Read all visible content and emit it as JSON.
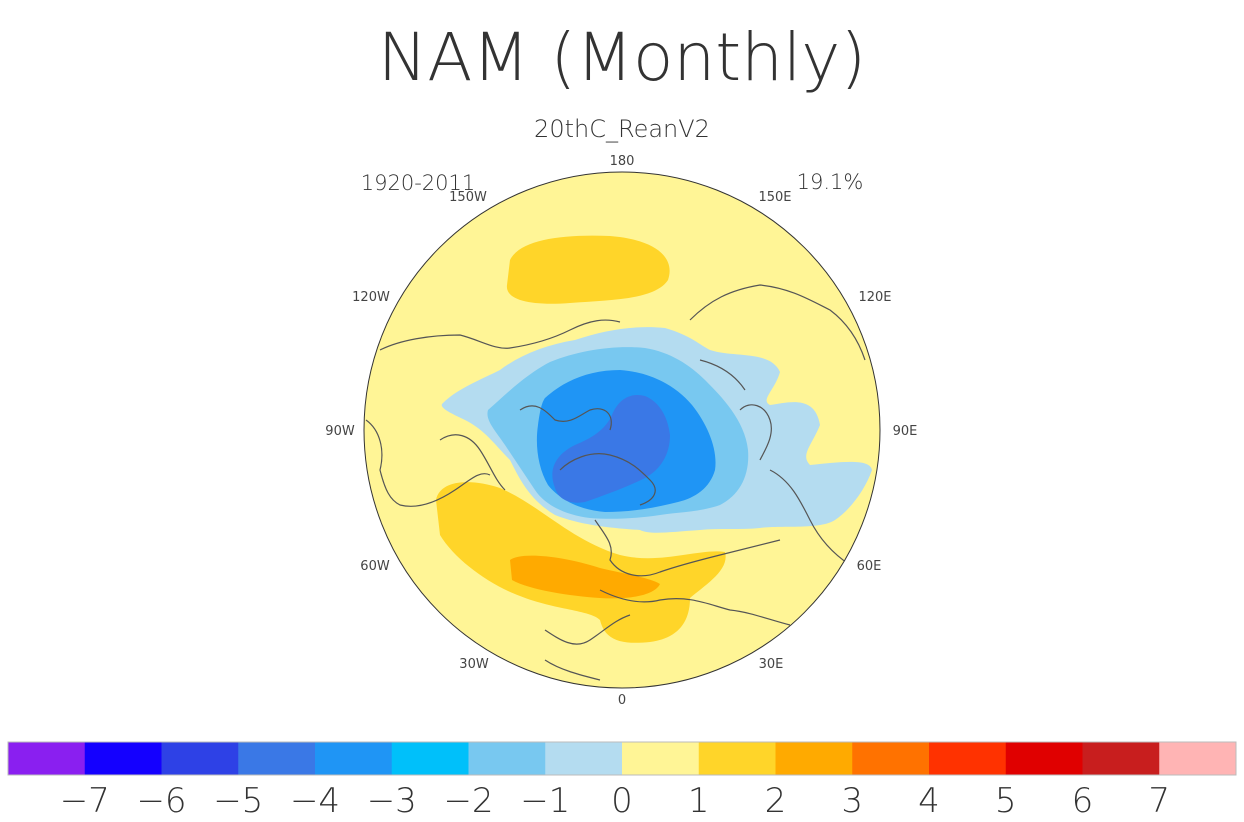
{
  "title": "NAM (Monthly)",
  "subtitle": "20thC_ReanV2",
  "period": "1920-2011",
  "variance_pct": "19.1%",
  "lon_labels": {
    "n": "180",
    "s": "0",
    "w": "90W",
    "e": "90E",
    "nw1": "150W",
    "nw2": "120W",
    "ne1": "150E",
    "ne2": "120E",
    "sw1": "60W",
    "sw2": "30W",
    "se1": "60E",
    "se2": "30E"
  },
  "colorbar": {
    "colors": [
      "#8a1ff0",
      "#1400ff",
      "#2e41e6",
      "#3a78e6",
      "#1f95f5",
      "#00c0fa",
      "#78c8f0",
      "#b4dcf0",
      "#fff596",
      "#ffd529",
      "#ffaa00",
      "#ff7200",
      "#ff3200",
      "#e00000",
      "#c81e1e",
      "#ffb4b4"
    ],
    "labels": [
      "−7",
      "−6",
      "−5",
      "−4",
      "−3",
      "−2",
      "−1",
      "0",
      "1",
      "2",
      "3",
      "4",
      "5",
      "6",
      "7"
    ]
  },
  "map_colors": {
    "background": "#fff596",
    "pos1": "#ffd529",
    "pos2": "#ffaa00",
    "neg1": "#b4dcf0",
    "neg2": "#78c8f0",
    "neg3": "#1f95f5",
    "neg4": "#3a78e6",
    "coast": "#555555"
  }
}
